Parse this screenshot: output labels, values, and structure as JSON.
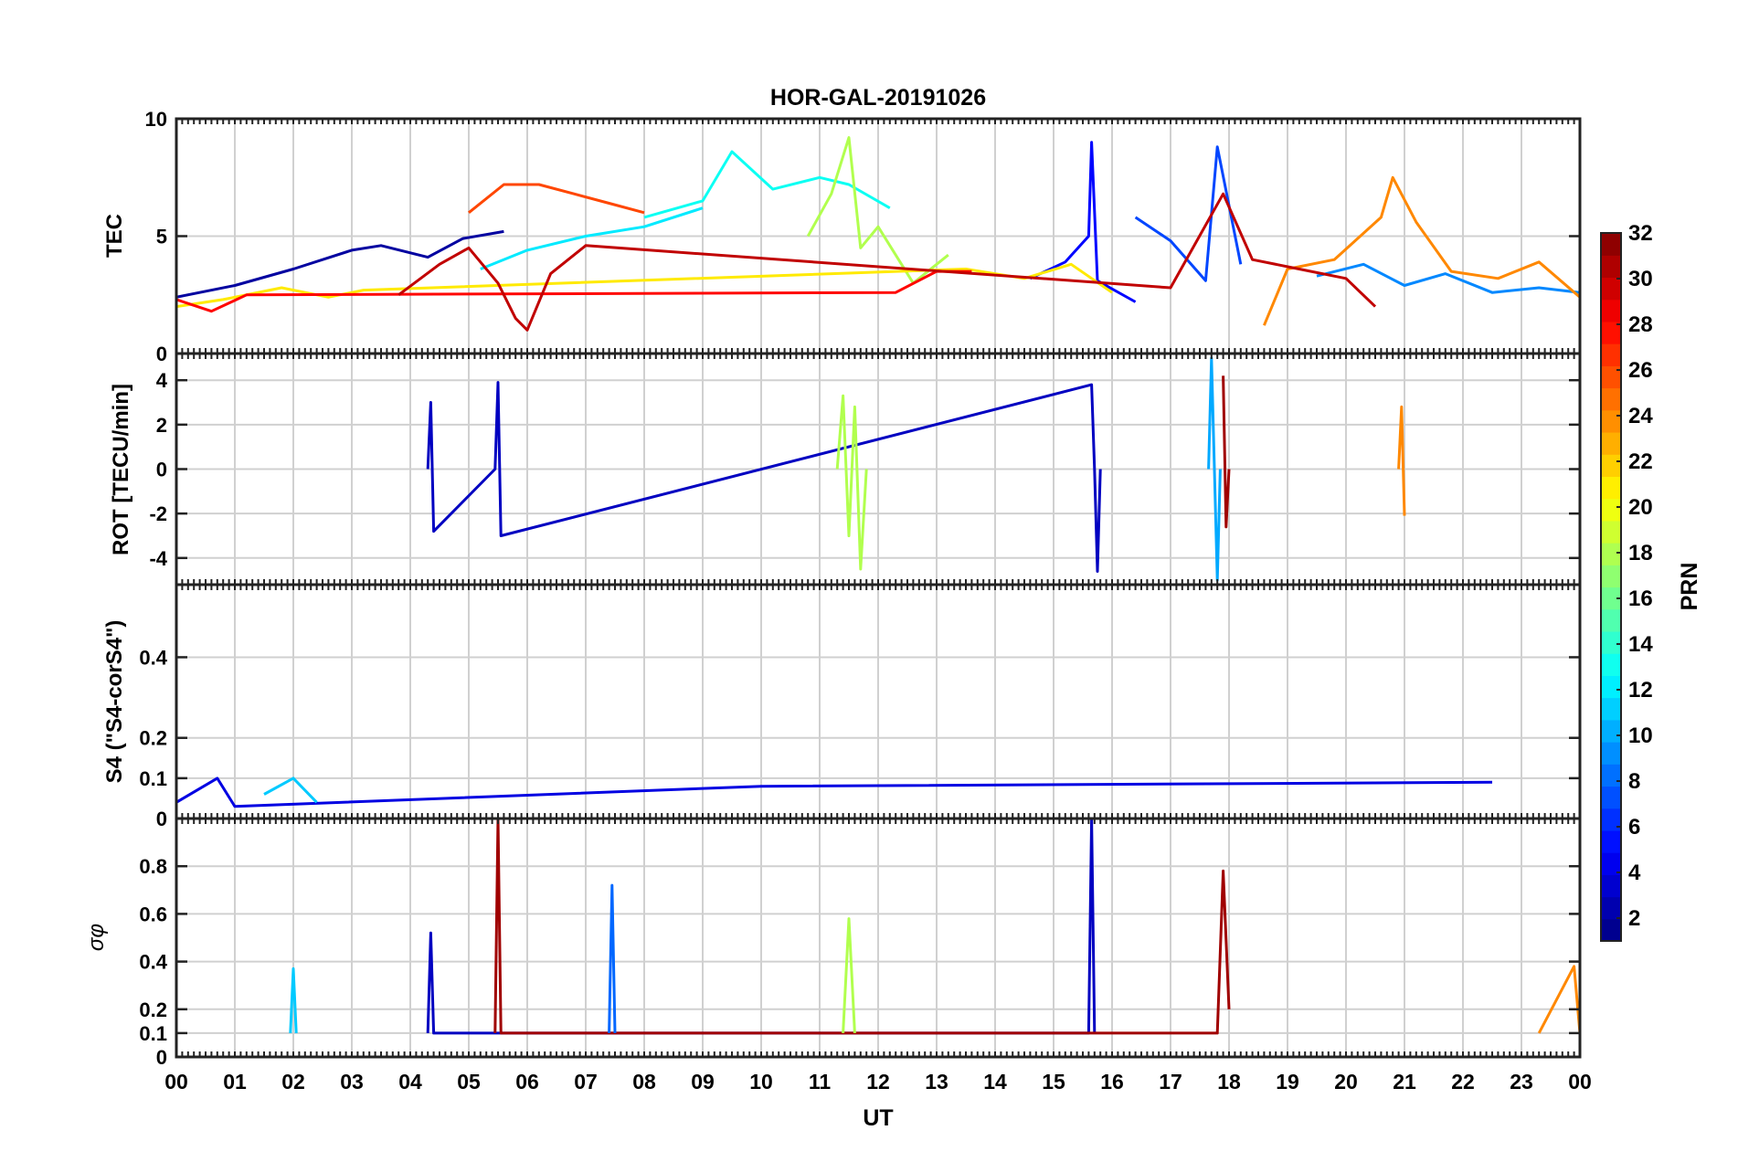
{
  "chart_data": {
    "type": "line",
    "title": "HOR-GAL-20191026",
    "xlabel": "UT",
    "x_ticks": [
      "00",
      "01",
      "02",
      "03",
      "04",
      "05",
      "06",
      "07",
      "08",
      "09",
      "10",
      "11",
      "12",
      "13",
      "14",
      "15",
      "16",
      "17",
      "18",
      "19",
      "20",
      "21",
      "22",
      "23",
      "00"
    ],
    "xlim": [
      0,
      24
    ],
    "grid": true,
    "panels": [
      {
        "id": "tec",
        "ylabel": "TEC",
        "ylim": [
          0,
          10
        ],
        "yticks": [
          0,
          5,
          10
        ],
        "ytick_labels": [
          "0",
          "5",
          "10"
        ],
        "series": [
          {
            "name": "PRN 2",
            "prn": 2,
            "x": [
              0,
              1,
              2,
              3,
              3.5,
              4.3,
              4.9,
              5.6
            ],
            "y": [
              2.4,
              2.9,
              3.6,
              4.4,
              4.6,
              4.1,
              4.9,
              5.2
            ]
          },
          {
            "name": "PRN 5",
            "prn": 5,
            "x": [
              14.6,
              15.2,
              15.6,
              15.65,
              15.75,
              16.4
            ],
            "y": [
              3.2,
              3.9,
              5.0,
              9.0,
              3.1,
              2.2
            ]
          },
          {
            "name": "PRN 7",
            "prn": 7,
            "x": [
              16.4,
              17.0,
              17.6,
              17.8,
              18.2
            ],
            "y": [
              5.8,
              4.8,
              3.1,
              8.8,
              3.8
            ]
          },
          {
            "name": "PRN 9",
            "prn": 9,
            "x": [
              19.5,
              20.3,
              21.0,
              21.7,
              22.5,
              23.3,
              24
            ],
            "y": [
              3.3,
              3.8,
              2.9,
              3.4,
              2.6,
              2.8,
              2.6
            ]
          },
          {
            "name": "PRN 12",
            "prn": 12,
            "x": [
              5.2,
              6.0,
              7.0,
              8.0,
              9.0
            ],
            "y": [
              3.6,
              4.4,
              5.0,
              5.4,
              6.2
            ]
          },
          {
            "name": "PRN 13",
            "prn": 13,
            "x": [
              8.0,
              9.0,
              9.5,
              10.2,
              11.0,
              11.5,
              12.2
            ],
            "y": [
              5.8,
              6.5,
              8.6,
              7.0,
              7.5,
              7.2,
              6.2
            ]
          },
          {
            "name": "PRN 18",
            "prn": 18,
            "x": [
              10.8,
              11.2,
              11.5,
              11.7,
              12.0,
              12.6,
              13.2
            ],
            "y": [
              5.0,
              6.8,
              9.2,
              4.5,
              5.4,
              3.0,
              4.2
            ]
          },
          {
            "name": "PRN 21",
            "prn": 21,
            "x": [
              0,
              0.8,
              1.8,
              2.6,
              3.2,
              13.5,
              14.5,
              15.3,
              16.0
            ],
            "y": [
              2.0,
              2.3,
              2.8,
              2.4,
              2.7,
              3.6,
              3.2,
              3.8,
              2.6
            ]
          },
          {
            "name": "PRN 24",
            "prn": 24,
            "x": [
              18.6,
              19.0,
              19.8,
              20.6,
              20.8,
              21.2,
              21.8,
              22.6,
              23.3,
              24
            ],
            "y": [
              1.2,
              3.6,
              4.0,
              5.8,
              7.5,
              5.6,
              3.5,
              3.2,
              3.9,
              2.4
            ]
          },
          {
            "name": "PRN 26",
            "prn": 26,
            "x": [
              5.0,
              5.6,
              6.2,
              6.8,
              7.4,
              8.0
            ],
            "y": [
              6.0,
              7.2,
              7.2,
              6.8,
              6.4,
              6.0
            ]
          },
          {
            "name": "PRN 28",
            "prn": 28,
            "x": [
              0,
              0.6,
              1.2,
              12.3,
              13.0,
              13.6
            ],
            "y": [
              2.3,
              1.8,
              2.5,
              2.6,
              3.5,
              3.5
            ]
          },
          {
            "name": "PRN 30",
            "prn": 30,
            "x": [
              3.8,
              4.5,
              5.0,
              5.5,
              5.8,
              6.0,
              6.4,
              7.0,
              17.0,
              17.9,
              18.4,
              19.2,
              20.0,
              20.5
            ],
            "y": [
              2.5,
              3.8,
              4.5,
              3.0,
              1.5,
              1.0,
              3.4,
              4.6,
              2.8,
              6.8,
              4.0,
              3.6,
              3.2,
              2.0
            ]
          }
        ]
      },
      {
        "id": "rot",
        "ylabel": "ROT [TECU/min]",
        "ylim": [
          -5.2,
          5.2
        ],
        "yticks": [
          -4,
          -2,
          0,
          2,
          4
        ],
        "ytick_labels": [
          "-4",
          "-2",
          "0",
          "2",
          "4"
        ],
        "series": [
          {
            "name": "PRN 3",
            "prn": 3,
            "x": [
              4.3,
              4.35,
              4.4,
              5.45,
              5.5,
              5.55,
              15.65,
              15.7,
              15.75,
              15.8
            ],
            "y": [
              0,
              3.0,
              -2.8,
              0,
              3.9,
              -3.0,
              3.8,
              0,
              -4.6,
              0
            ]
          },
          {
            "name": "PRN 10",
            "prn": 10,
            "x": [
              17.65,
              17.7,
              17.75,
              17.8,
              17.85
            ],
            "y": [
              0,
              5.0,
              0,
              -5.0,
              0
            ]
          },
          {
            "name": "PRN 18",
            "prn": 18,
            "x": [
              11.3,
              11.4,
              11.5,
              11.6,
              11.7,
              11.8
            ],
            "y": [
              0,
              3.3,
              -3.0,
              2.8,
              -4.5,
              0
            ]
          },
          {
            "name": "PRN 24",
            "prn": 24,
            "x": [
              20.9,
              20.95,
              21.0
            ],
            "y": [
              0,
              2.8,
              -2.1
            ]
          },
          {
            "name": "PRN 31",
            "prn": 31,
            "x": [
              17.9,
              17.95,
              18.0
            ],
            "y": [
              4.2,
              -2.6,
              0
            ]
          }
        ]
      },
      {
        "id": "s4",
        "ylabel": "S4 (\"S4-corS4\")",
        "ylim": [
          0,
          0.58
        ],
        "yticks": [
          0,
          0.1,
          0.2,
          0.4
        ],
        "ytick_labels": [
          "0",
          "0.1",
          "0.2",
          "0.4"
        ],
        "series": [
          {
            "name": "PRN 4",
            "prn": 4,
            "x": [
              0,
              0.7,
              1.0,
              10.0,
              22.5
            ],
            "y": [
              0.04,
              0.1,
              0.03,
              0.08,
              0.09
            ]
          },
          {
            "name": "PRN 11",
            "prn": 11,
            "x": [
              1.5,
              2.0,
              2.4
            ],
            "y": [
              0.06,
              0.1,
              0.04
            ]
          }
        ]
      },
      {
        "id": "sigma_phi",
        "ylabel": "σφ",
        "ylim": [
          0,
          1.0
        ],
        "yticks": [
          0,
          0.1,
          0.2,
          0.4,
          0.6,
          0.8
        ],
        "ytick_labels": [
          "0",
          "0.1",
          "0.2",
          "0.4",
          "0.6",
          "0.8"
        ],
        "series": [
          {
            "name": "PRN 11",
            "prn": 11,
            "x": [
              1.95,
              2.0,
              2.05
            ],
            "y": [
              0.1,
              0.37,
              0.1
            ]
          },
          {
            "name": "PRN 3",
            "prn": 3,
            "x": [
              4.3,
              4.35,
              4.4,
              15.6,
              15.65,
              15.7
            ],
            "y": [
              0.1,
              0.52,
              0.1,
              0.1,
              1.0,
              0.1
            ]
          },
          {
            "name": "PRN 31",
            "prn": 31,
            "x": [
              5.45,
              5.5,
              5.55,
              17.8,
              17.9,
              18.0
            ],
            "y": [
              0.1,
              1.0,
              0.1,
              0.1,
              0.78,
              0.2
            ]
          },
          {
            "name": "PRN 8",
            "prn": 8,
            "x": [
              7.4,
              7.45,
              7.5
            ],
            "y": [
              0.1,
              0.72,
              0.1
            ]
          },
          {
            "name": "PRN 18",
            "prn": 18,
            "x": [
              11.4,
              11.5,
              11.6
            ],
            "y": [
              0.1,
              0.58,
              0.1
            ]
          },
          {
            "name": "PRN 24",
            "prn": 24,
            "x": [
              23.3,
              23.9,
              24.0
            ],
            "y": [
              0.1,
              0.38,
              0.1
            ]
          }
        ]
      }
    ],
    "colorbar": {
      "label": "PRN",
      "min": 1,
      "max": 32,
      "colormap": "jet",
      "ticks": [
        2,
        4,
        6,
        8,
        10,
        12,
        14,
        16,
        18,
        20,
        22,
        24,
        26,
        28,
        30,
        32
      ],
      "tick_labels": [
        "2",
        "4",
        "6",
        "8",
        "10",
        "12",
        "14",
        "16",
        "18",
        "20",
        "22",
        "24",
        "26",
        "28",
        "30",
        "32"
      ]
    }
  }
}
